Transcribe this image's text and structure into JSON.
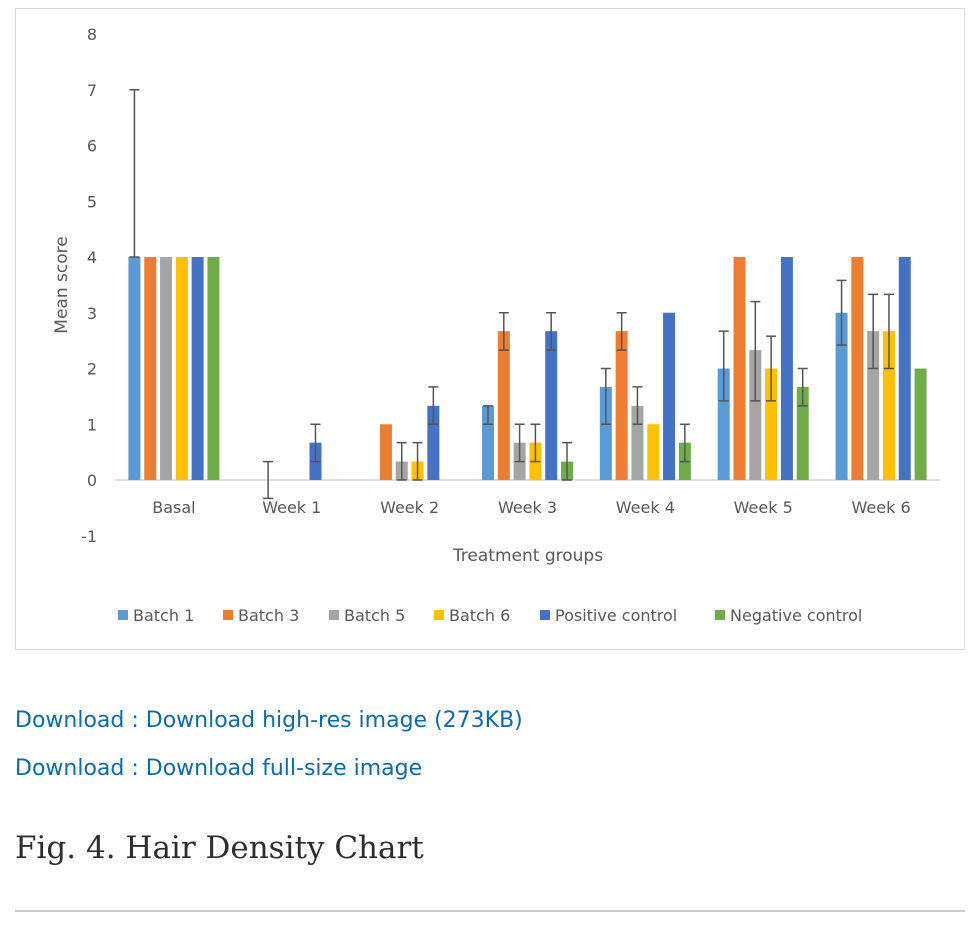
{
  "chart_data": {
    "type": "bar",
    "ylabel": "Mean score",
    "xlabel": "Treatment groups",
    "ylim": [
      -1,
      8
    ],
    "yticks": [
      -1,
      0,
      1,
      2,
      3,
      4,
      5,
      6,
      7,
      8
    ],
    "legend_position": "bottom",
    "categories": [
      "Basal",
      "Week 1",
      "Week 2",
      "Week 3",
      "Week 4",
      "Week 5",
      "Week 6"
    ],
    "series": [
      {
        "name": "Batch 1",
        "color": "#5b9bd5",
        "values": [
          4,
          0,
          0,
          1.33,
          1.67,
          2,
          3
        ],
        "err": [
          [
            4,
            7
          ],
          null,
          null,
          [
            1,
            1.33
          ],
          [
            1,
            2
          ],
          [
            1.42,
            2.67
          ],
          [
            2.42,
            3.58
          ]
        ]
      },
      {
        "name": "Batch 3",
        "color": "#ed7d31",
        "values": [
          4,
          0,
          1,
          2.67,
          2.67,
          4,
          4
        ],
        "err": [
          null,
          [
            -0.33,
            0.33
          ],
          null,
          [
            2.33,
            3
          ],
          [
            2.33,
            3
          ],
          null,
          null
        ]
      },
      {
        "name": "Batch 5",
        "color": "#a5a5a5",
        "values": [
          4,
          0,
          0.33,
          0.67,
          1.33,
          2.33,
          2.67
        ],
        "err": [
          null,
          null,
          [
            0,
            0.67
          ],
          [
            0.33,
            1
          ],
          [
            1,
            1.67
          ],
          [
            1.42,
            3.2
          ],
          [
            2,
            3.33
          ]
        ]
      },
      {
        "name": "Batch 6",
        "color": "#ffc000",
        "values": [
          4,
          0,
          0.33,
          0.67,
          1,
          2,
          2.67
        ],
        "err": [
          null,
          null,
          [
            0,
            0.67
          ],
          [
            0.33,
            1
          ],
          null,
          [
            1.42,
            2.58
          ],
          [
            2,
            3.33
          ]
        ]
      },
      {
        "name": "Positive control",
        "color": "#4472c4",
        "values": [
          4,
          0.67,
          1.33,
          2.67,
          3,
          4,
          4
        ],
        "err": [
          null,
          [
            0.33,
            1
          ],
          [
            1,
            1.67
          ],
          [
            2.33,
            3
          ],
          null,
          null,
          null
        ]
      },
      {
        "name": "Negative control",
        "color": "#70ad47",
        "values": [
          4,
          0,
          0,
          0.33,
          0.67,
          1.67,
          2
        ],
        "err": [
          null,
          null,
          null,
          [
            0,
            0.67
          ],
          [
            0.33,
            1
          ],
          [
            1.33,
            2
          ],
          null
        ]
      }
    ]
  },
  "links": [
    "Download : Download high-res image (273KB)",
    "Download : Download full-size image"
  ],
  "caption": "Fig. 4. Hair Density Chart"
}
